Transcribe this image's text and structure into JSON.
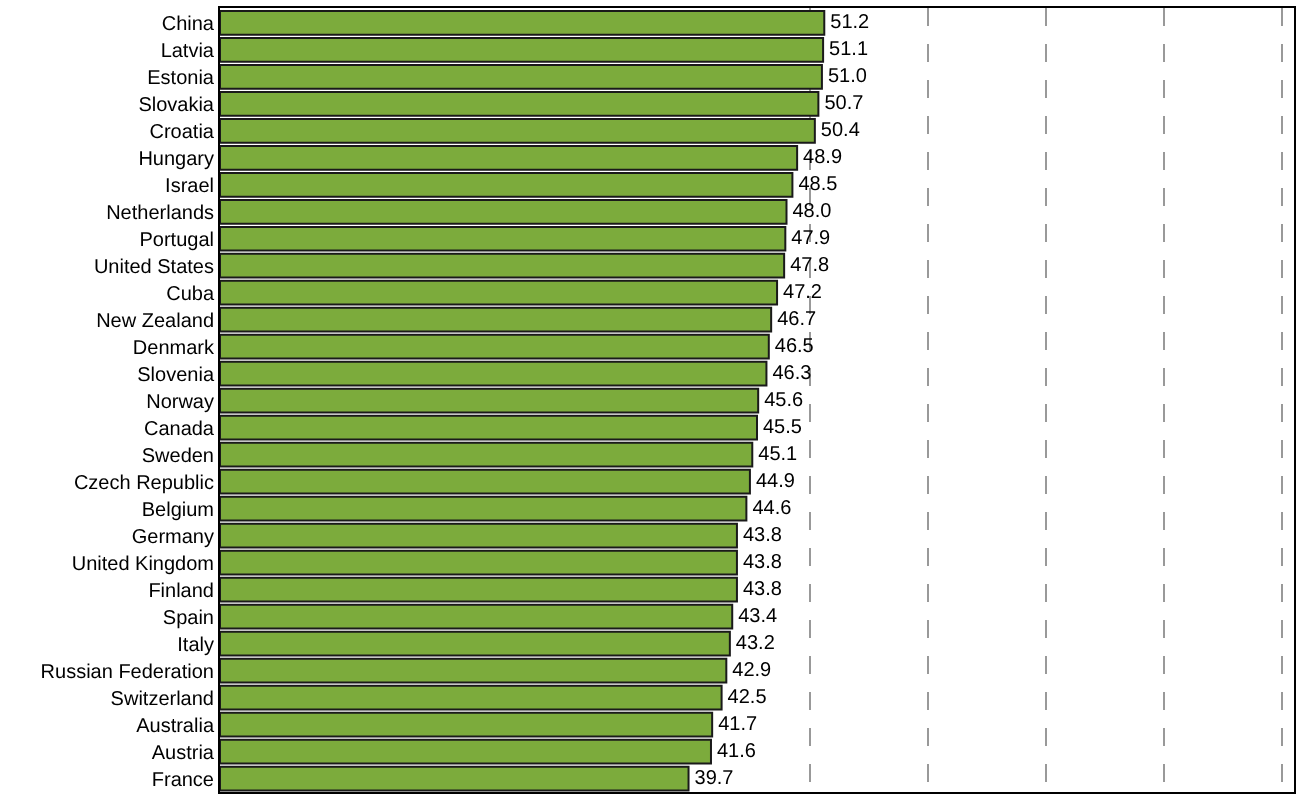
{
  "chart_data": {
    "type": "bar",
    "orientation": "horizontal",
    "categories": [
      "China",
      "Latvia",
      "Estonia",
      "Slovakia",
      "Croatia",
      "Hungary",
      "Israel",
      "Netherlands",
      "Portugal",
      "United States",
      "Cuba",
      "New Zealand",
      "Denmark",
      "Slovenia",
      "Norway",
      "Canada",
      "Sweden",
      "Czech Republic",
      "Belgium",
      "Germany",
      "United Kingdom",
      "Finland",
      "Spain",
      "Italy",
      "Russian Federation",
      "Switzerland",
      "Australia",
      "Austria",
      "France"
    ],
    "values": [
      51.2,
      51.1,
      51.0,
      50.7,
      50.4,
      48.9,
      48.5,
      48.0,
      47.9,
      47.8,
      47.2,
      46.7,
      46.5,
      46.3,
      45.6,
      45.5,
      45.1,
      44.9,
      44.6,
      43.8,
      43.8,
      43.8,
      43.4,
      43.2,
      42.9,
      42.5,
      41.7,
      41.6,
      39.7
    ],
    "value_labels": [
      "51.2",
      "51.1",
      "51.0",
      "50.7",
      "50.4",
      "48.9",
      "48.5",
      "48.0",
      "47.9",
      "47.8",
      "47.2",
      "46.7",
      "46.5",
      "46.3",
      "45.6",
      "45.5",
      "45.1",
      "44.9",
      "44.6",
      "43.8",
      "43.8",
      "43.8",
      "43.4",
      "43.2",
      "42.9",
      "42.5",
      "41.7",
      "41.6",
      "39.7"
    ],
    "color": "#7cab3c",
    "xlim": [
      0,
      91
    ],
    "xticks": [
      {
        "value": 50,
        "label": null
      },
      {
        "value": 60,
        "label": null
      },
      {
        "value": 70,
        "label": null
      },
      {
        "value": 80,
        "label": null
      },
      {
        "value": 90,
        "label": null
      }
    ],
    "grid": "x",
    "tick_labels": "y",
    "legend": false
  }
}
